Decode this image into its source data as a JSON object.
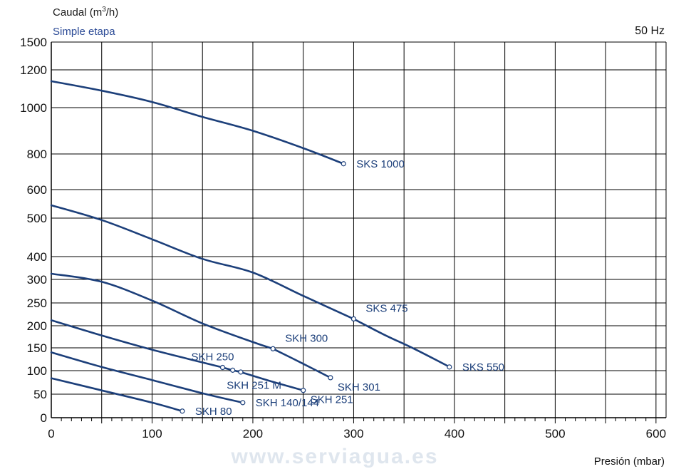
{
  "chart_data": {
    "type": "line",
    "ylabel_prefix": "Caudal (m",
    "ylabel_sup": "3",
    "ylabel_suffix": "/h)",
    "subtitle": "Simple etapa",
    "frequency": "50 Hz",
    "xlabel": "Presión (mbar)",
    "watermark": "www.serviagua.es",
    "xlim": [
      0,
      610
    ],
    "x_ticks": [
      0,
      100,
      200,
      300,
      400,
      500,
      600
    ],
    "x_tick_labels": [
      "0",
      "100",
      "200",
      "300",
      "400",
      "500",
      "600"
    ],
    "y_ticks": [
      0,
      50,
      100,
      150,
      200,
      250,
      300,
      400,
      500,
      600,
      800,
      1000,
      1200,
      1500
    ],
    "y_tick_labels": [
      "0",
      "50",
      "100",
      "150",
      "200",
      "250",
      "300",
      "400",
      "500",
      "600",
      "800",
      "1000",
      "1200",
      "1500"
    ],
    "grid": true,
    "line_color": "#1c3f7a",
    "grid_color": "#000000",
    "series": [
      {
        "name": "SKS 1000",
        "points": [
          [
            0,
            1140
          ],
          [
            50,
            1090
          ],
          [
            100,
            1030
          ],
          [
            150,
            960
          ],
          [
            200,
            900
          ],
          [
            250,
            825
          ],
          [
            290,
            745
          ]
        ],
        "end_markers": [
          [
            290,
            745
          ]
        ]
      },
      {
        "name": "SKS 475",
        "points": [
          [
            0,
            545
          ],
          [
            50,
            495
          ],
          [
            100,
            445
          ],
          [
            150,
            390
          ],
          [
            200,
            330
          ],
          [
            250,
            265
          ],
          [
            300,
            215
          ]
        ],
        "end_markers": [
          [
            300,
            215
          ]
        ]
      },
      {
        "name": "SKS 550",
        "points": [
          [
            300,
            215
          ],
          [
            330,
            180
          ],
          [
            360,
            148
          ],
          [
            390,
            114
          ],
          [
            395,
            108
          ]
        ],
        "end_markers": [
          [
            395,
            108
          ]
        ]
      },
      {
        "name": "SKH 300",
        "points": [
          [
            0,
            325
          ],
          [
            50,
            295
          ],
          [
            100,
            255
          ],
          [
            150,
            205
          ],
          [
            200,
            163
          ],
          [
            220,
            148
          ]
        ],
        "end_markers": [
          [
            220,
            148
          ]
        ]
      },
      {
        "name": "SKH 301",
        "points": [
          [
            220,
            148
          ],
          [
            250,
            115
          ],
          [
            277,
            85
          ]
        ],
        "end_markers": [
          [
            277,
            85
          ]
        ]
      },
      {
        "name": "SKH 250",
        "points": [
          [
            0,
            212
          ],
          [
            50,
            178
          ],
          [
            100,
            146
          ],
          [
            150,
            118
          ],
          [
            170,
            107
          ]
        ],
        "end_markers": [
          [
            170,
            107
          ]
        ]
      },
      {
        "name": "SKH 251 M",
        "points": [
          [
            170,
            107
          ],
          [
            180,
            101
          ],
          [
            188,
            97
          ]
        ],
        "end_markers": [
          [
            180,
            101
          ],
          [
            188,
            97
          ]
        ]
      },
      {
        "name": "SKH 251",
        "points": [
          [
            188,
            97
          ],
          [
            220,
            76
          ],
          [
            250,
            58
          ]
        ],
        "end_markers": [
          [
            250,
            58
          ]
        ]
      },
      {
        "name": "SKH 140/144",
        "points": [
          [
            0,
            140
          ],
          [
            50,
            108
          ],
          [
            100,
            80
          ],
          [
            150,
            52
          ],
          [
            190,
            32
          ]
        ],
        "end_markers": [
          [
            190,
            32
          ]
        ]
      },
      {
        "name": "SKH 80",
        "points": [
          [
            0,
            84
          ],
          [
            50,
            58
          ],
          [
            100,
            32
          ],
          [
            130,
            14
          ]
        ],
        "end_markers": [
          [
            130,
            14
          ]
        ]
      }
    ],
    "label_anchors": [
      {
        "name": "SKS 1000",
        "at": [
          290,
          745
        ],
        "placement": "right"
      },
      {
        "name": "SKS 475",
        "at": [
          300,
          215
        ],
        "placement": "above-right"
      },
      {
        "name": "SKS 550",
        "at": [
          395,
          108
        ],
        "placement": "right"
      },
      {
        "name": "SKH 300",
        "at": [
          220,
          148
        ],
        "placement": "above-right"
      },
      {
        "name": "SKH 301",
        "at": [
          277,
          85
        ],
        "placement": "below-right"
      },
      {
        "name": "SKH 250",
        "at": [
          170,
          107
        ],
        "placement": "above-left"
      },
      {
        "name": "SKH 251 M",
        "at": [
          180,
          101
        ],
        "placement": "below"
      },
      {
        "name": "SKH 251",
        "at": [
          250,
          58
        ],
        "placement": "below-right"
      },
      {
        "name": "SKH 140/144",
        "at": [
          190,
          32
        ],
        "placement": "right"
      },
      {
        "name": "SKH 80",
        "at": [
          130,
          14
        ],
        "placement": "right"
      }
    ]
  }
}
